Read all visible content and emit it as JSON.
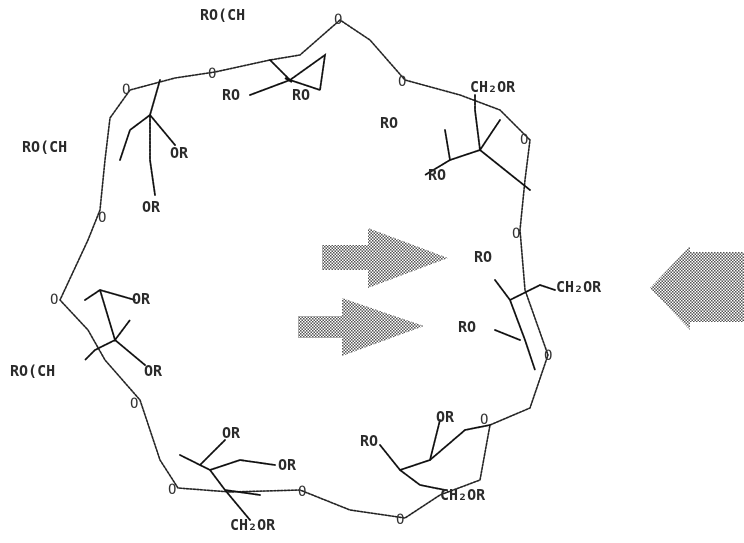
{
  "labels": {
    "top_left_sub": "RO(CH",
    "top_ro1": "RO",
    "top_ro2": "RO",
    "top_right_sub": "CH₂OR",
    "upper_right_ro1": "RO",
    "upper_right_ro2": "RO",
    "left_sub": "RO(CH",
    "left_or1": "OR",
    "left_or2": "OR",
    "mid_left_or1": "OR",
    "mid_left_sub": "RO(CH",
    "mid_left_or2": "OR",
    "right_ro1": "RO",
    "right_sub": "CH₂OR",
    "right_ro2": "RO",
    "bottom_or1": "OR",
    "bottom_or2": "OR",
    "bottom_left_sub": "CH₂OR",
    "bottom_ro": "RO",
    "bottom_or3": "OR",
    "bottom_right_sub": "CH₂OR"
  },
  "ring_oxygen": "O"
}
